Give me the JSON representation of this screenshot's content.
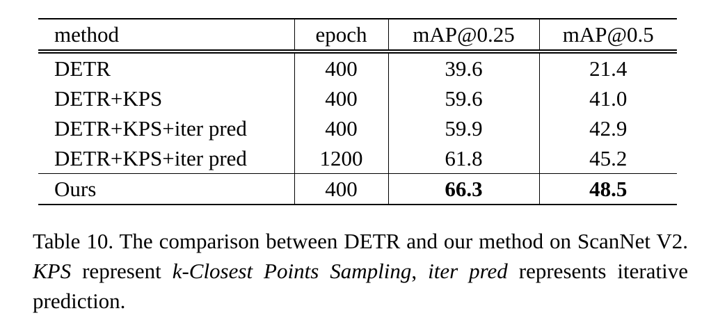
{
  "table": {
    "headers": [
      "method",
      "epoch",
      "mAP@0.25",
      "mAP@0.5"
    ],
    "rows": [
      {
        "method": "DETR",
        "epoch": "400",
        "map25": "39.6",
        "map50": "21.4"
      },
      {
        "method": "DETR+KPS",
        "epoch": "400",
        "map25": "59.6",
        "map50": "41.0"
      },
      {
        "method": "DETR+KPS+iter pred",
        "epoch": "400",
        "map25": "59.9",
        "map50": "42.9"
      },
      {
        "method": "DETR+KPS+iter pred",
        "epoch": "1200",
        "map25": "61.8",
        "map50": "45.2"
      },
      {
        "method": "Ours",
        "epoch": "400",
        "map25": "66.3",
        "map50": "48.5"
      }
    ]
  },
  "caption": {
    "part1": "Table 10. The comparison between DETR and our method on ScanNet V2. ",
    "kps_term": "KPS",
    "part2": " represent ",
    "kps_full": "k-Closest Points Sampling",
    "part3": ", ",
    "iter_term": "iter pred",
    "part4": " represents iterative prediction."
  }
}
